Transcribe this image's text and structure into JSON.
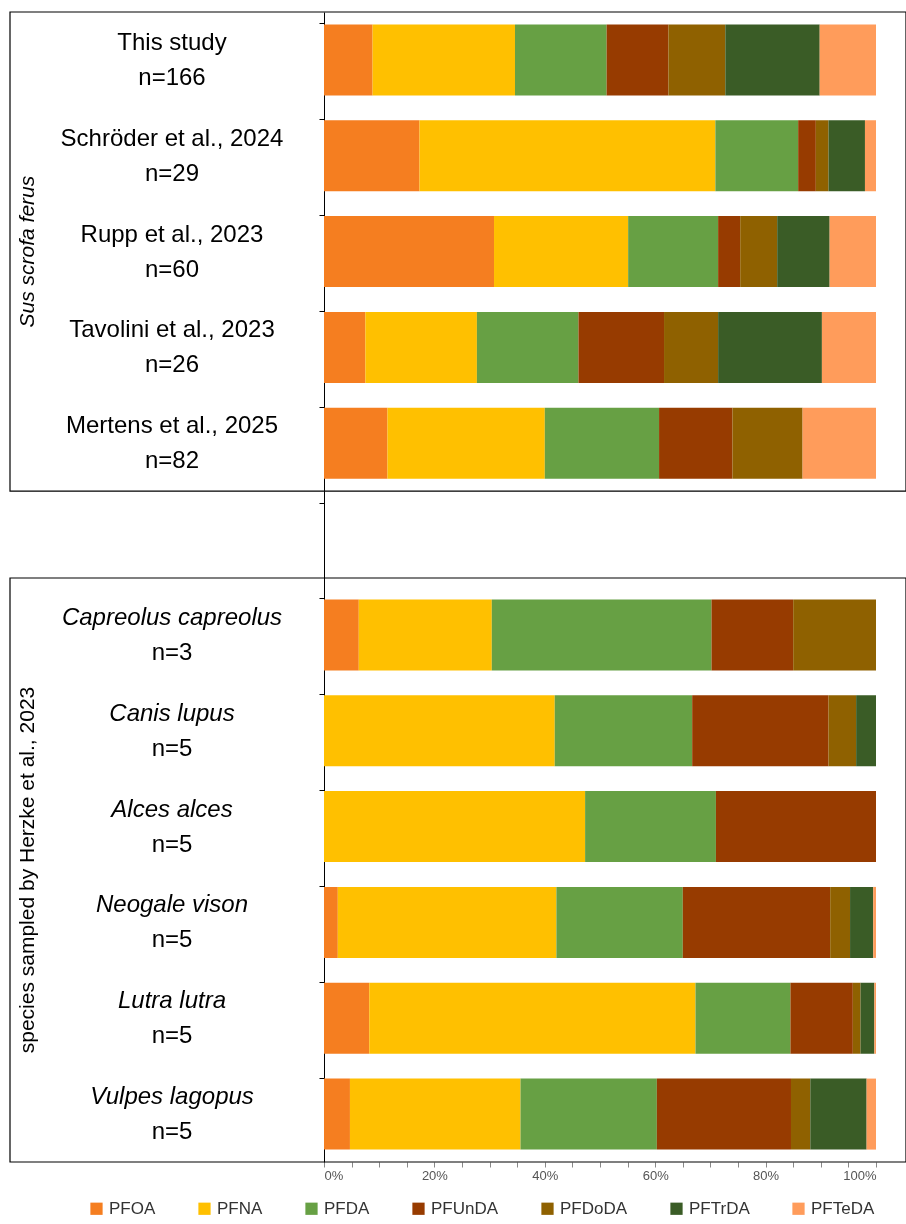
{
  "chart_data": {
    "type": "bar",
    "orientation": "horizontal",
    "stacked": true,
    "categories": [
      "This study\nn=166",
      "Schröder et al., 2024\nn=29",
      "Rupp et al., 2023\nn=60",
      "Tavolini et al., 2023\nn=26",
      "Mertens et al., 2025\nn=82",
      null,
      "Capreolus capreolus\nn=3",
      "Canis lupus\nn=5",
      "Alces alces\nn=5",
      "Neogale vison\nn=5",
      "Lutra lutra\nn=5",
      "Vulpes lagopus\nn=5"
    ],
    "series": [
      {
        "name": "PFOA",
        "color": "#f57e20",
        "values": [
          8.8,
          17.3,
          30.8,
          7.5,
          11.5,
          null,
          6.3,
          0,
          0,
          2.5,
          8.2,
          4.7
        ]
      },
      {
        "name": "PFNA",
        "color": "#ffc000",
        "values": [
          25.8,
          53.6,
          24.3,
          20.2,
          28.5,
          null,
          24.1,
          41.8,
          47.3,
          39.6,
          59.1,
          30.9
        ]
      },
      {
        "name": "PFDA",
        "color": "#67a044",
        "values": [
          16.6,
          15.0,
          16.3,
          18.4,
          20.7,
          null,
          39.8,
          24.9,
          23.7,
          22.9,
          17.2,
          24.7
        ]
      },
      {
        "name": "PFUnDA",
        "color": "#973b00",
        "values": [
          11.2,
          3.2,
          4.0,
          15.5,
          13.3,
          null,
          14.8,
          24.7,
          29.0,
          26.7,
          11.3,
          24.3
        ]
      },
      {
        "name": "PFDoDA",
        "color": "#8f6100",
        "values": [
          10.3,
          2.3,
          6.7,
          9.8,
          12.7,
          null,
          15.0,
          5.0,
          0,
          3.6,
          1.4,
          3.5
        ]
      },
      {
        "name": "PFTrDA",
        "color": "#3a5c26",
        "values": [
          17.1,
          6.6,
          9.5,
          18.8,
          0,
          null,
          0,
          3.6,
          0,
          4.2,
          2.5,
          10.2
        ]
      },
      {
        "name": "PFTeDA",
        "color": "#ff9c5b",
        "values": [
          10.2,
          2.0,
          8.4,
          9.8,
          13.3,
          null,
          0,
          0,
          0,
          0.5,
          0.3,
          1.7
        ]
      }
    ],
    "xlim": [
      0,
      100
    ],
    "xticks": [
      {
        "value": 0,
        "label": "0%"
      },
      {
        "value": 5,
        "label": null
      },
      {
        "value": 10,
        "label": null
      },
      {
        "value": 15,
        "label": null
      },
      {
        "value": 20,
        "label": "20%"
      },
      {
        "value": 25,
        "label": null
      },
      {
        "value": 30,
        "label": null
      },
      {
        "value": 35,
        "label": null
      },
      {
        "value": 40,
        "label": "40%"
      },
      {
        "value": 45,
        "label": null
      },
      {
        "value": 50,
        "label": null
      },
      {
        "value": 55,
        "label": null
      },
      {
        "value": 60,
        "label": "60%"
      },
      {
        "value": 65,
        "label": null
      },
      {
        "value": 70,
        "label": null
      },
      {
        "value": 75,
        "label": null
      },
      {
        "value": 80,
        "label": "80%"
      },
      {
        "value": 85,
        "label": null
      },
      {
        "value": 90,
        "label": null
      },
      {
        "value": 95,
        "label": null
      },
      {
        "value": 100,
        "label": "100%"
      }
    ],
    "annotations": [
      "Sus scrofa ferus",
      "species sampled by Herzke et al., 2023"
    ],
    "grid": false,
    "legend": "bottom"
  }
}
